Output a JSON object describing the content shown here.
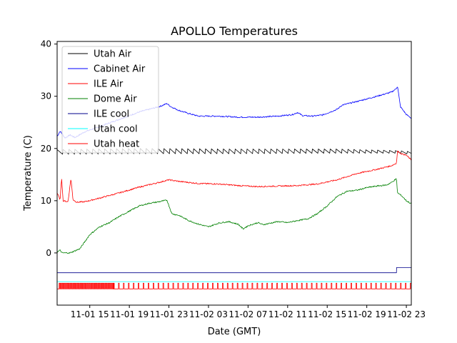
{
  "chart_data": {
    "type": "line",
    "title": "APOLLO Temperatures",
    "xlabel": "Date (GMT)",
    "ylabel": "Temperature (C)",
    "xlim": [
      11.7,
      47.5
    ],
    "ylim": [
      -10,
      40.5
    ],
    "x_unit": "hours since 11-01 00:00 GMT",
    "xticks": [
      {
        "value": 15,
        "label": "11-01 15"
      },
      {
        "value": 19,
        "label": "11-01 19"
      },
      {
        "value": 23,
        "label": "11-01 23"
      },
      {
        "value": 27,
        "label": "11-02 03"
      },
      {
        "value": 31,
        "label": "11-02 07"
      },
      {
        "value": 35,
        "label": "11-02 11"
      },
      {
        "value": 39,
        "label": "11-02 15"
      },
      {
        "value": 43,
        "label": "11-02 19"
      },
      {
        "value": 47,
        "label": "11-02 23"
      }
    ],
    "yticks": [
      {
        "value": 0,
        "label": "0"
      },
      {
        "value": 10,
        "label": "10"
      },
      {
        "value": 20,
        "label": "20"
      },
      {
        "value": 30,
        "label": "30"
      },
      {
        "value": 40,
        "label": "40"
      }
    ],
    "grid": false,
    "legend_position": "top-left",
    "series": [
      {
        "name": "Utah Air",
        "color": "#000000",
        "style": "sawtooth",
        "period_h": 0.6,
        "x": [
          11.7,
          20,
          30,
          40,
          46,
          47.5
        ],
        "y_high": [
          19.8,
          20.0,
          19.9,
          19.9,
          19.6,
          19.4
        ],
        "y_low": [
          18.9,
          19.0,
          19.0,
          19.1,
          19.1,
          18.9
        ]
      },
      {
        "name": "Cabinet Air",
        "color": "#0000ff",
        "x": [
          11.7,
          12.0,
          12.5,
          13.0,
          13.5,
          14.5,
          16.0,
          18.0,
          20.0,
          22.0,
          22.8,
          23.2,
          24.0,
          25.0,
          26.0,
          28.0,
          30.0,
          32.0,
          34.0,
          35.5,
          36.0,
          36.5,
          37.5,
          38.5,
          40.0,
          40.5,
          42.0,
          44.0,
          45.5,
          46.0,
          46.1,
          46.4,
          47.0,
          47.5
        ],
        "y": [
          22.3,
          23.3,
          22.0,
          22.6,
          22.1,
          23.2,
          24.2,
          25.6,
          27.0,
          28.0,
          28.6,
          28.0,
          27.3,
          26.7,
          26.2,
          26.2,
          26.0,
          26.0,
          26.2,
          26.5,
          26.9,
          26.3,
          26.2,
          26.4,
          27.5,
          28.3,
          29.0,
          30.0,
          30.8,
          31.5,
          32.0,
          28.0,
          26.5,
          25.8
        ]
      },
      {
        "name": "ILE Air",
        "color": "#ff0000",
        "x": [
          11.7,
          12.0,
          12.15,
          12.3,
          12.8,
          13.1,
          13.3,
          13.7,
          14.5,
          16.0,
          18.0,
          20.0,
          22.0,
          23.0,
          24.0,
          26.0,
          28.0,
          30.0,
          32.0,
          34.0,
          36.0,
          38.0,
          40.0,
          42.0,
          44.0,
          45.5,
          46.0,
          46.1,
          46.5,
          47.0,
          47.5
        ],
        "y": [
          11.5,
          10.2,
          14.5,
          10.0,
          9.8,
          14.3,
          10.2,
          9.7,
          9.8,
          10.5,
          11.5,
          12.6,
          13.5,
          14.0,
          13.7,
          13.3,
          13.2,
          12.9,
          12.7,
          12.8,
          12.9,
          13.2,
          14.0,
          15.2,
          16.0,
          16.7,
          17.2,
          19.5,
          19.0,
          18.7,
          17.8
        ]
      },
      {
        "name": "Dome Air",
        "color": "#008000",
        "x": [
          11.7,
          12.0,
          12.2,
          13.0,
          14.0,
          15.0,
          16.0,
          17.0,
          18.0,
          19.0,
          20.0,
          21.0,
          22.0,
          22.5,
          22.8,
          23.3,
          24.0,
          25.0,
          26.0,
          27.0,
          28.0,
          29.0,
          30.0,
          30.5,
          31.0,
          32.0,
          32.5,
          33.0,
          34.0,
          35.0,
          36.0,
          37.0,
          38.0,
          39.0,
          40.0,
          41.0,
          42.0,
          43.0,
          44.0,
          45.0,
          45.5,
          46.0,
          46.1,
          46.5,
          47.0,
          47.5
        ],
        "y": [
          0.2,
          0.5,
          0.0,
          0.0,
          0.8,
          3.5,
          5.0,
          5.8,
          7.0,
          8.0,
          9.0,
          9.5,
          9.8,
          10.0,
          10.1,
          7.5,
          7.2,
          6.2,
          5.5,
          5.0,
          5.7,
          6.0,
          5.5,
          4.6,
          5.2,
          5.8,
          5.4,
          5.6,
          6.0,
          5.8,
          6.2,
          6.5,
          7.5,
          9.0,
          10.8,
          11.8,
          12.0,
          12.5,
          12.8,
          13.0,
          13.5,
          14.2,
          11.5,
          11.0,
          10.0,
          9.4
        ]
      },
      {
        "name": "ILE cool",
        "color": "#00008b",
        "x": [
          11.7,
          46.0,
          46.01,
          47.5
        ],
        "y": [
          -3.8,
          -3.8,
          -2.8,
          -2.8
        ]
      },
      {
        "name": "Utah cool",
        "color": "#00ffff",
        "x": [
          11.7,
          47.5
        ],
        "y": [
          -5.5,
          -5.5
        ]
      },
      {
        "name": "Utah heat",
        "color": "#ff0000",
        "style": "pulses",
        "base": -6.9,
        "top": -5.8,
        "pulse_segments": [
          {
            "x_start": 11.9,
            "x_end": 17.4,
            "period_h": 0.14
          },
          {
            "x_start": 17.4,
            "x_end": 47.5,
            "period_h": 0.5
          }
        ]
      }
    ]
  }
}
